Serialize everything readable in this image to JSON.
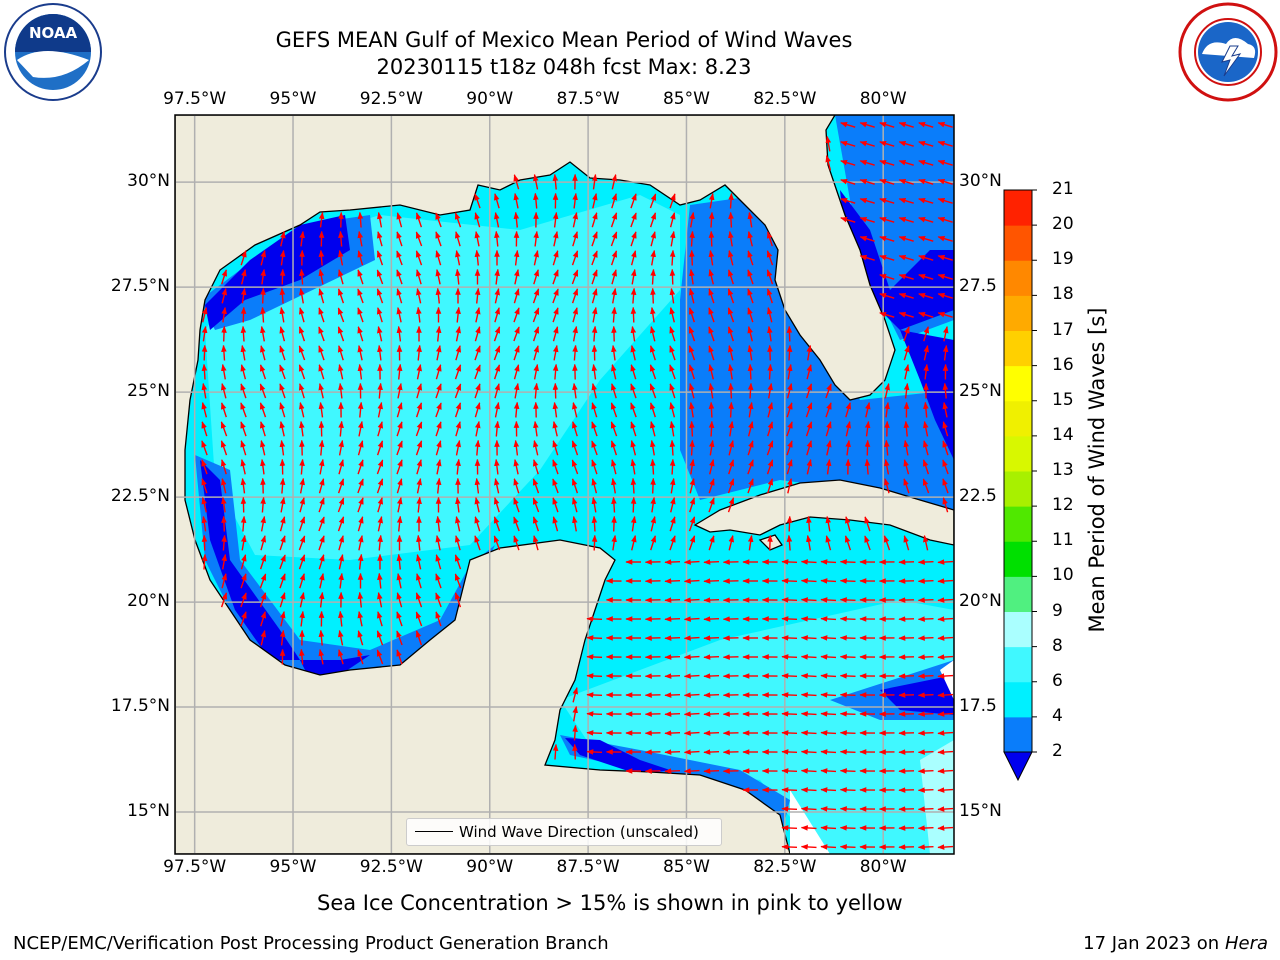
{
  "title": {
    "line1": "GEFS MEAN Gulf of Mexico Mean Period of Wind Waves",
    "line2": "20230115 t18z 048h fcst   Max: 8.23"
  },
  "logos": {
    "left": {
      "name": "noaa-logo",
      "text": "NOAA"
    },
    "right": {
      "name": "national-weather-service-logo"
    }
  },
  "map": {
    "lon_labels": [
      "97.5°W",
      "95°W",
      "92.5°W",
      "90°W",
      "87.5°W",
      "85°W",
      "82.5°W",
      "80°W"
    ],
    "lat_labels_left": [
      "30°N",
      "27.5°N",
      "25°N",
      "22.5°N",
      "20°N",
      "17.5°N",
      "15°N"
    ],
    "lat_labels_right": [
      "30°N",
      "27.5",
      "25°N",
      "22.5",
      "20°N",
      "17.5",
      "15°N"
    ],
    "lon_values": [
      -97.5,
      -95,
      -92.5,
      -90,
      -87.5,
      -85,
      -82.5,
      -80
    ],
    "lat_values": [
      30,
      27.5,
      25,
      22.5,
      20,
      17.5,
      15
    ],
    "extent": {
      "lon_min": -98,
      "lon_max": -78.2,
      "lat_min": 14,
      "lat_max": 31.6
    },
    "colors": {
      "land": "#efecdc",
      "ocean_low": "#0000ee",
      "ocean_2_4": "#0a7dfa",
      "ocean_4_6": "#00f0ff",
      "ocean_6_8": "#40f8ff",
      "arrow": "#ff0000",
      "grid": "#b0b0b0"
    }
  },
  "colorbar": {
    "label": "Mean Period of Wind Waves [s]",
    "ticks": [
      "2",
      "4",
      "6",
      "8",
      "9",
      "10",
      "11",
      "12",
      "13",
      "14",
      "15",
      "16",
      "17",
      "18",
      "19",
      "20",
      "21"
    ],
    "colors": [
      "#0a7dfa",
      "#00f0ff",
      "#40f8ff",
      "#aaffff",
      "#50f080",
      "#00e000",
      "#50e800",
      "#a8f000",
      "#d8f800",
      "#f0f000",
      "#ffff00",
      "#ffd000",
      "#ffaa00",
      "#ff8800",
      "#ff5500",
      "#ff2200",
      "#ff0000"
    ],
    "extend_color": "#0000ee"
  },
  "legend": {
    "label": "Wind Wave Direction (unscaled)"
  },
  "subtitle": "Sea Ice Concentration > 15% is shown in pink to yellow",
  "footer": {
    "left": "NCEP/EMC/Verification Post Processing Product Generation Branch",
    "right_date": "17 Jan 2023 on ",
    "right_host": "Hera"
  }
}
